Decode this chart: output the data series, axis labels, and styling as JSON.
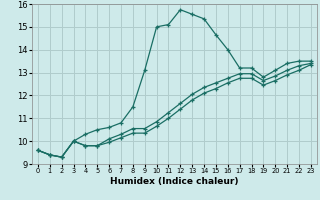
{
  "xlabel": "Humidex (Indice chaleur)",
  "background_color": "#ceeaea",
  "grid_color": "#b0cccc",
  "line_color": "#1a6e64",
  "xlim": [
    -0.5,
    23.5
  ],
  "ylim": [
    9,
    16
  ],
  "xticks": [
    0,
    1,
    2,
    3,
    4,
    5,
    6,
    7,
    8,
    9,
    10,
    11,
    12,
    13,
    14,
    15,
    16,
    17,
    18,
    19,
    20,
    21,
    22,
    23
  ],
  "yticks": [
    9,
    10,
    11,
    12,
    13,
    14,
    15,
    16
  ],
  "line1_x": [
    0,
    1,
    2,
    3,
    4,
    5,
    6,
    7,
    8,
    9,
    10,
    11,
    12,
    13,
    14,
    15,
    16,
    17,
    18,
    19,
    20,
    21,
    22,
    23
  ],
  "line1_y": [
    9.6,
    9.4,
    9.3,
    10.0,
    10.3,
    10.5,
    10.6,
    10.8,
    11.5,
    13.1,
    15.0,
    15.1,
    15.75,
    15.55,
    15.35,
    14.65,
    14.0,
    13.2,
    13.2,
    12.8,
    13.1,
    13.4,
    13.5,
    13.5
  ],
  "line2_x": [
    0,
    1,
    2,
    3,
    4,
    5,
    6,
    7,
    8,
    9,
    10,
    11,
    12,
    13,
    14,
    15,
    16,
    17,
    18,
    19,
    20,
    21,
    22,
    23
  ],
  "line2_y": [
    9.6,
    9.4,
    9.3,
    10.0,
    9.8,
    9.8,
    10.1,
    10.3,
    10.55,
    10.55,
    10.85,
    11.25,
    11.65,
    12.05,
    12.35,
    12.55,
    12.75,
    12.95,
    12.95,
    12.65,
    12.85,
    13.1,
    13.3,
    13.4
  ],
  "line3_x": [
    0,
    1,
    2,
    3,
    4,
    5,
    6,
    7,
    8,
    9,
    10,
    11,
    12,
    13,
    14,
    15,
    16,
    17,
    18,
    19,
    20,
    21,
    22,
    23
  ],
  "line3_y": [
    9.6,
    9.4,
    9.3,
    10.0,
    9.8,
    9.8,
    9.95,
    10.15,
    10.35,
    10.35,
    10.65,
    11.0,
    11.4,
    11.8,
    12.1,
    12.3,
    12.55,
    12.75,
    12.75,
    12.45,
    12.65,
    12.9,
    13.1,
    13.35
  ]
}
